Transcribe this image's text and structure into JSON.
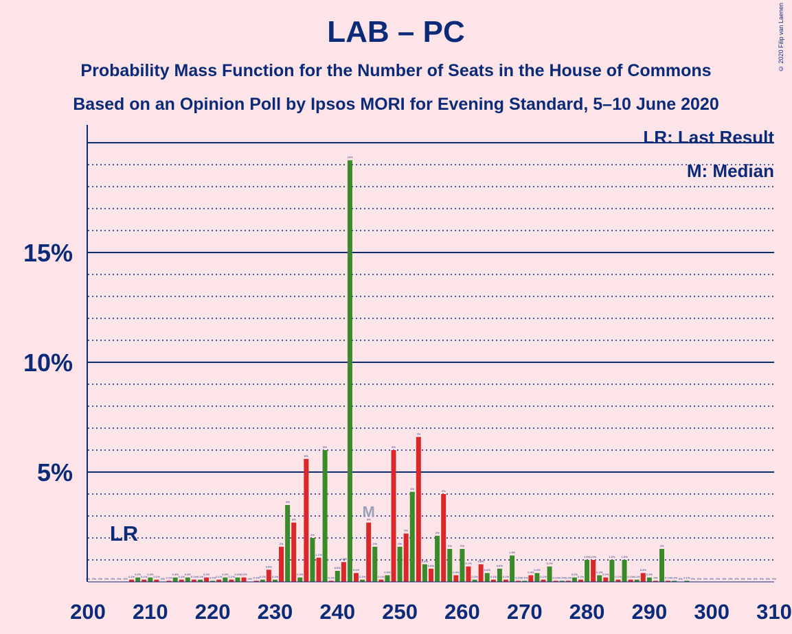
{
  "title": "LAB – PC",
  "subtitle1": "Probability Mass Function for the Number of Seats in the House of Commons",
  "subtitle2": "Based on an Opinion Poll by Ipsos MORI for Evening Standard, 5–10 June 2020",
  "copyright": "© 2020 Filip van Laenen",
  "legend": {
    "last_result": "LR: Last Result",
    "median": "M: Median"
  },
  "colors": {
    "background": "#fde4e8",
    "text": "#0b2a78",
    "bar_green": "#3a8a2a",
    "bar_red": "#d8282a"
  },
  "chart_data": {
    "type": "bar",
    "title": "LAB – PC",
    "xlabel": "",
    "ylabel": "",
    "xlim": [
      200,
      310
    ],
    "ylim": [
      0,
      21
    ],
    "x_ticks": [
      "200",
      "210",
      "220",
      "230",
      "240",
      "250",
      "260",
      "270",
      "280",
      "290",
      "300",
      "310"
    ],
    "y_ticks": [
      "5%",
      "10%",
      "15%"
    ],
    "last_result_label": "LR",
    "last_result_seat": 206,
    "median_label": "M",
    "median_seat": 245,
    "series": [
      {
        "name": "seats",
        "x": [
          200,
          201,
          202,
          203,
          204,
          205,
          206,
          207,
          208,
          209,
          210,
          211,
          212,
          213,
          214,
          215,
          216,
          217,
          218,
          219,
          220,
          221,
          222,
          223,
          224,
          225,
          226,
          227,
          228,
          229,
          230,
          231,
          232,
          233,
          234,
          235,
          236,
          237,
          238,
          239,
          240,
          241,
          242,
          243,
          244,
          245,
          246,
          247,
          248,
          249,
          250,
          251,
          252,
          253,
          254,
          255,
          256,
          257,
          258,
          259,
          260,
          261,
          262,
          263,
          264,
          265,
          266,
          267,
          268,
          269,
          270,
          271,
          272,
          273,
          274,
          275,
          276,
          277,
          278,
          279,
          280,
          281,
          282,
          283,
          284,
          285,
          286,
          287,
          288,
          289,
          290,
          291,
          292,
          293,
          294,
          295,
          296,
          297,
          298,
          299,
          300,
          301,
          302,
          303,
          304,
          305,
          306,
          307,
          308,
          309,
          310
        ],
        "values": [
          0,
          0,
          0,
          0,
          0,
          0,
          0,
          0.1,
          0.2,
          0.1,
          0.2,
          0.1,
          0,
          0.05,
          0.2,
          0.1,
          0.2,
          0.1,
          0.1,
          0.2,
          0.05,
          0.1,
          0.2,
          0.1,
          0.2,
          0.2,
          0,
          0.05,
          0.1,
          0.55,
          0.1,
          1.6,
          3.5,
          2.7,
          0.2,
          5.6,
          2,
          1.1,
          6,
          0.05,
          0.5,
          0.9,
          19.2,
          0.4,
          0.1,
          2.7,
          1.6,
          0.1,
          0.3,
          6,
          1.6,
          2.2,
          4.1,
          6.6,
          0.8,
          0.6,
          2.1,
          4,
          1.5,
          0.3,
          1.5,
          0.7,
          0.1,
          0.8,
          0.4,
          0.1,
          0.6,
          0.1,
          1.2,
          0.05,
          0.05,
          0.3,
          0.4,
          0.1,
          0.7,
          0.05,
          0.05,
          0.05,
          0.2,
          0.1,
          1,
          1,
          0.3,
          0.2,
          1,
          0.1,
          1,
          0.1,
          0.1,
          0.4,
          0.2,
          0.05,
          1.5,
          0.05,
          0.05,
          0,
          0.05,
          0,
          0,
          0,
          0,
          0,
          0,
          0,
          0,
          0,
          0,
          0,
          0,
          0,
          0
        ],
        "labels": [
          "0%",
          "0%",
          "0%",
          "0%",
          "0%",
          "0%",
          "0%",
          "0.1%",
          "0.2%",
          "0.1%",
          "0.3%",
          "0.1%",
          "0%",
          "0.1%",
          "0.3%",
          "0.1%",
          "0.3%",
          "0.1%",
          "0.1%",
          "0.2%",
          "0.1%",
          "0.1%",
          "0.2%",
          "0.1%",
          "0.3%",
          "0.2%",
          "0%",
          "0.1%",
          "0.1%",
          "0.6%",
          "0.1%",
          "2%",
          "4%",
          "3%",
          "0.3%",
          "6%",
          "2%",
          "1.1%",
          "6%",
          "0.1%",
          "0.6%",
          "1.0%",
          "19%",
          "0.4%",
          "0.1%",
          "3%",
          "2%",
          "0.1%",
          "0.4%",
          "6%",
          "2%",
          "2%",
          "4%",
          "7%",
          "0.9%",
          "0.6%",
          "2%",
          "4%",
          "2%",
          "0.4%",
          "2%",
          "0.7%",
          "0.1%",
          "0.8%",
          "0.4%",
          "0.1%",
          "0.6%",
          "0.1%",
          "1.3%",
          "0.1%",
          "0.1%",
          "0.4%",
          "0.4%",
          "0.1%",
          "0.7%",
          "0.1%",
          "0.1%",
          "0.1%",
          "0.2%",
          "0.1%",
          "1.0%",
          "1.0%",
          "0.3%",
          "0.2%",
          "1.0%",
          "0.1%",
          "1.0%",
          "0.1%",
          "0.1%",
          "0.4%",
          "0.3%",
          "0%",
          "2%",
          "0.1%",
          "0.1%",
          "0%",
          "0.1%",
          "0%",
          "0%",
          "0%",
          "0%",
          "0%",
          "0%",
          "0%",
          "0%",
          "0%",
          "0%",
          "0%",
          "0%",
          "0%",
          "0%"
        ]
      }
    ]
  }
}
